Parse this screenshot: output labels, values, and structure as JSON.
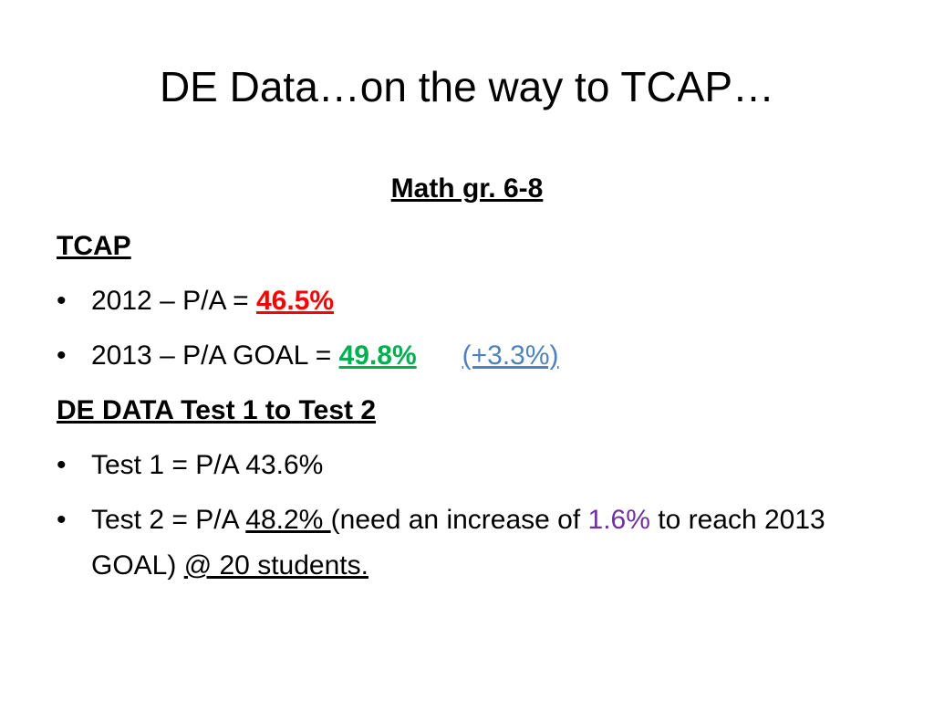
{
  "title": "DE Data…on the way to TCAP…",
  "subtitle": "Math gr. 6-8",
  "sections": [
    {
      "heading": "TCAP",
      "bullets": [
        [
          "2012 – P/A = ",
          "46.5%"
        ],
        [
          "2013 – P/A GOAL = ",
          "49.8%",
          "(+3.3%)"
        ]
      ]
    },
    {
      "heading": "DE DATA Test 1 to Test 2",
      "bullets": [
        [
          "Test 1 = P/A 43.6%"
        ],
        [
          "Test 2 = P/A ",
          "48.2% ",
          "(need an increase of ",
          "1.6%",
          " to reach 2013 GOAL) ",
          "@ 20 students."
        ]
      ]
    }
  ]
}
